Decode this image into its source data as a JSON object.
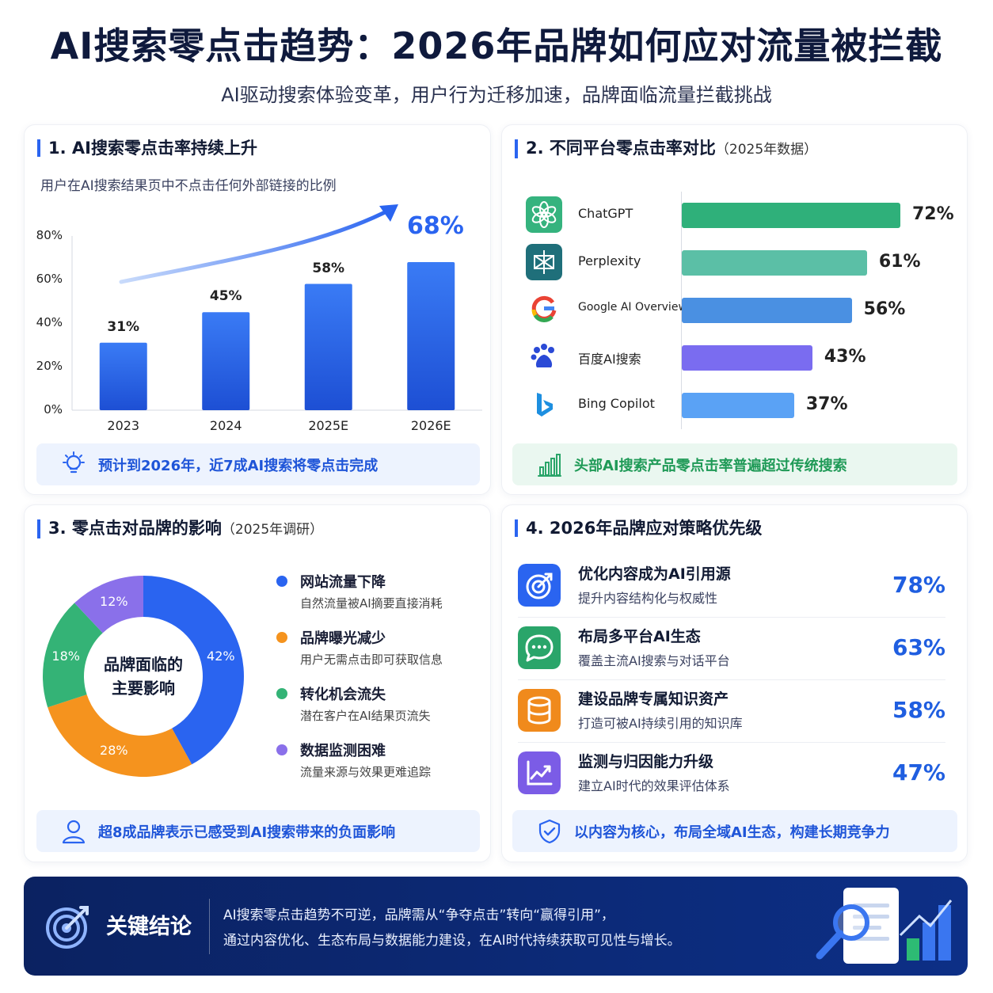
{
  "title": "AI搜索零点击趋势：2026年品牌如何应对流量被拦截",
  "subtitle": "AI驱动搜索体验变革，用户行为迁移加速，品牌面临流量拦截挑战",
  "panel1": {
    "title": "1. AI搜索零点击率持续上升",
    "desc": "用户在AI搜索结果页中不点击任何外部链接的比例",
    "highlight": "68%",
    "banner": "预计到2026年，近7成AI搜索将零点击完成"
  },
  "panel2": {
    "title": "2. 不同平台零点击率对比",
    "title_note": "（2025年数据）",
    "banner": "头部AI搜索产品零点击率普遍超过传统搜索"
  },
  "panel3": {
    "title": "3. 零点击对品牌的影响",
    "title_note": "（2025年调研）",
    "center_line1": "品牌面临的",
    "center_line2": "主要影响",
    "banner": "超8成品牌表示已感受到AI搜索带来的负面影响"
  },
  "panel4": {
    "title": "4. 2026年品牌应对策略优先级",
    "banner": "以内容为核心，布局全域AI生态，构建长期竞争力",
    "items": [
      {
        "title": "优化内容成为AI引用源",
        "sub": "提升内容结构化与权威性",
        "value": "78%",
        "icon": "target-icon",
        "color": "#2a64f0"
      },
      {
        "title": "布局多平台AI生态",
        "sub": "覆盖主流AI搜索与对话平台",
        "value": "63%",
        "icon": "chat-icon",
        "color": "#2aa56a"
      },
      {
        "title": "建设品牌专属知识资产",
        "sub": "打造可被AI持续引用的知识库",
        "value": "58%",
        "icon": "database-icon",
        "color": "#f08a1c"
      },
      {
        "title": "监测与归因能力升级",
        "sub": "建立AI时代的效果评估体系",
        "value": "47%",
        "icon": "chart-line-icon",
        "color": "#7b5ce6"
      }
    ]
  },
  "conclusion": {
    "title": "关键结论",
    "line1": "AI搜索零点击趋势不可逆，品牌需从“争夺点击”转向“赢得引用”，",
    "line2": "通过内容优化、生态布局与数据能力建设，在AI时代持续获取可见性与增长。"
  },
  "chart_data": [
    {
      "type": "bar",
      "categories": [
        "2023",
        "2024",
        "2025E",
        "2026E"
      ],
      "values": [
        31,
        45,
        58,
        68
      ],
      "value_labels": [
        "31%",
        "45%",
        "58%",
        "68%"
      ],
      "yticks": [
        "0%",
        "20%",
        "40%",
        "60%",
        "80%"
      ],
      "ylim": [
        0,
        80
      ],
      "color": "#2a64f0"
    },
    {
      "type": "bar",
      "orientation": "horizontal",
      "categories": [
        "ChatGPT",
        "Perplexity",
        "Google AI Overview",
        "百度AI搜索",
        "Bing Copilot"
      ],
      "values": [
        72,
        61,
        56,
        43,
        37
      ],
      "value_labels": [
        "72%",
        "61%",
        "56%",
        "43%",
        "37%"
      ],
      "colors": [
        "#2fb07a",
        "#5bbfa6",
        "#4a90e2",
        "#7a6cf0",
        "#5aa2f5"
      ],
      "icons": [
        "chatgpt-icon",
        "perplexity-icon",
        "google-icon",
        "baidu-icon",
        "bing-icon"
      ]
    },
    {
      "type": "pie",
      "donut": true,
      "slices": [
        {
          "label": "网站流量下降",
          "value": 42,
          "value_label": "42%",
          "sub": "自然流量被AI摘要直接消耗",
          "color": "#2a64f0"
        },
        {
          "label": "品牌曝光减少",
          "value": 28,
          "value_label": "28%",
          "sub": "用户无需点击即可获取信息",
          "color": "#f5931e"
        },
        {
          "label": "转化机会流失",
          "value": 18,
          "value_label": "18%",
          "sub": "潜在客户在AI结果页流失",
          "color": "#34b376"
        },
        {
          "label": "数据监测困难",
          "value": 12,
          "value_label": "12%",
          "sub": "流量来源与效果更难追踪",
          "color": "#8a70ea"
        }
      ]
    }
  ]
}
